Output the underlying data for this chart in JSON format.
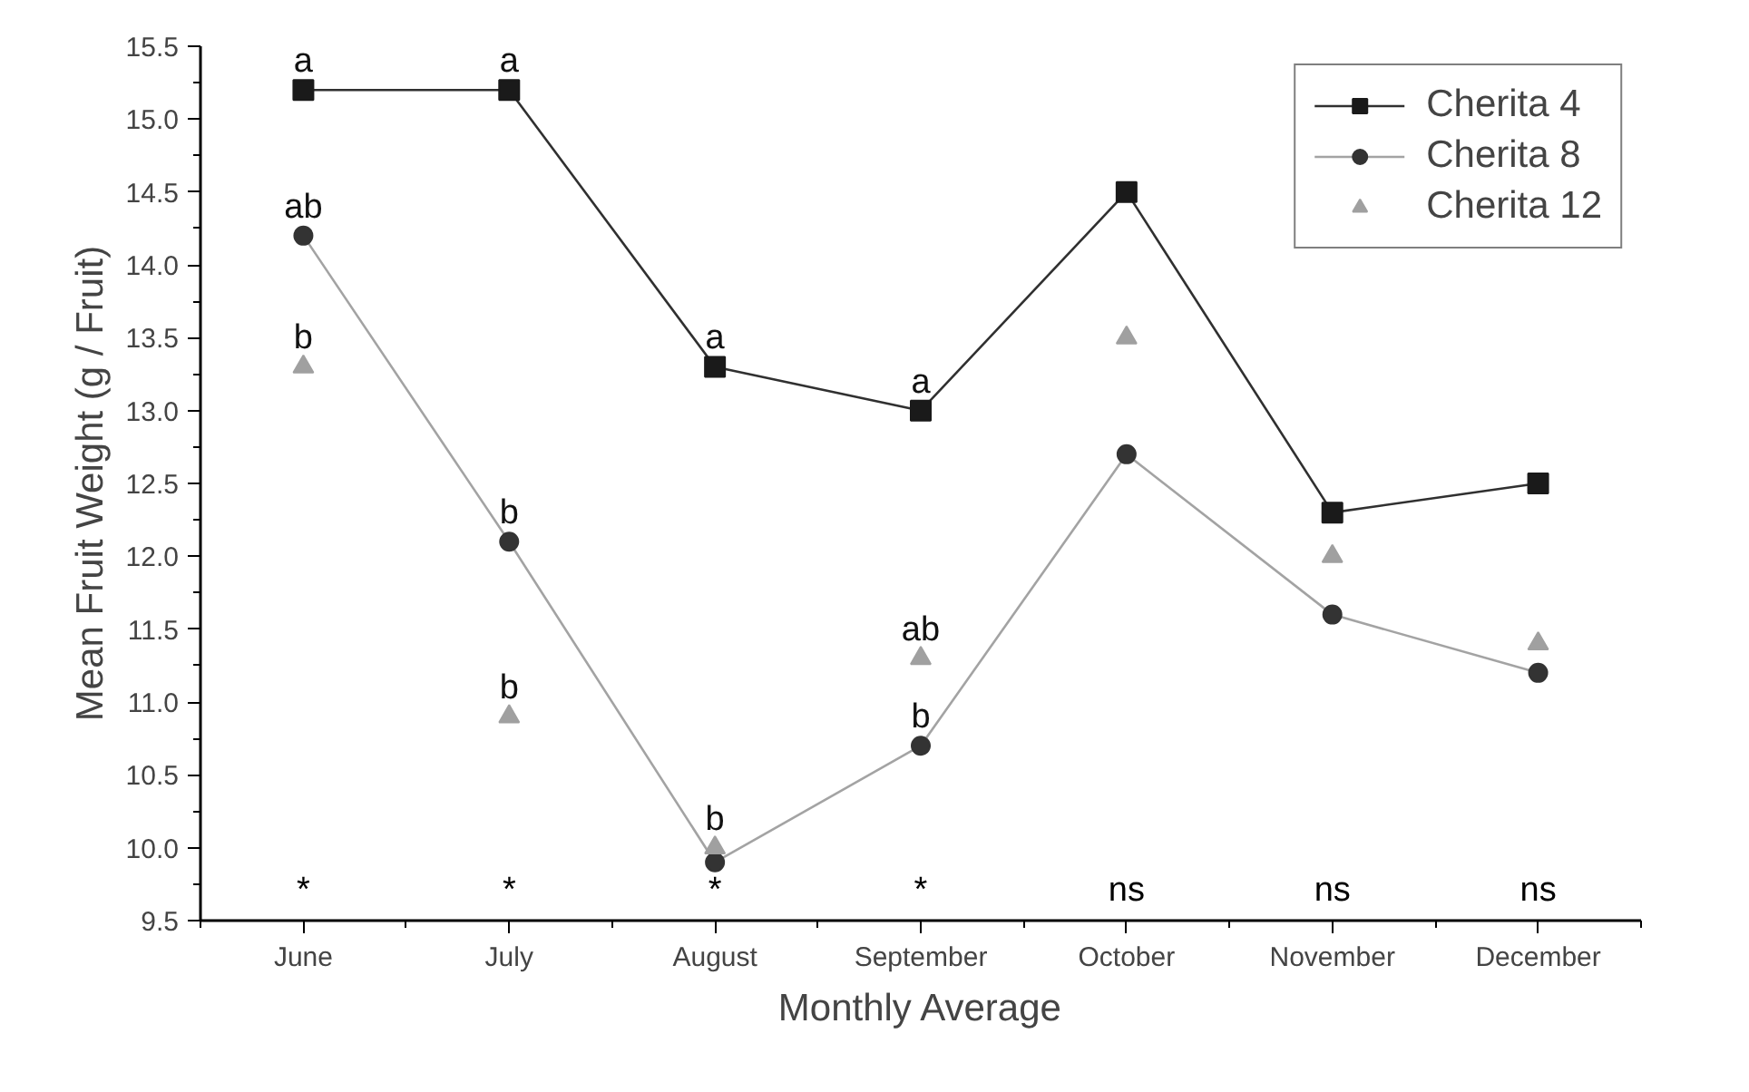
{
  "chart_data": {
    "type": "line",
    "xlabel": "Monthly Average",
    "ylabel": "Mean Fruit Weight (g / Fruit)",
    "categories": [
      "June",
      "July",
      "August",
      "September",
      "October",
      "November",
      "December"
    ],
    "series": [
      {
        "name": "Cherita 4",
        "color": "#1a1a1a",
        "marker": "square",
        "values": [
          15.2,
          15.2,
          13.3,
          13.0,
          14.5,
          12.3,
          12.5
        ],
        "value_labels": [
          "a",
          "a",
          "a",
          "a",
          null,
          null,
          null
        ]
      },
      {
        "name": "Cherita 8",
        "color": "#333333",
        "marker": "circle",
        "values": [
          14.2,
          12.1,
          9.9,
          10.7,
          12.7,
          11.6,
          11.2
        ],
        "value_labels": [
          "ab",
          "b",
          null,
          "b",
          null,
          null,
          null
        ]
      },
      {
        "name": "Cherita 12",
        "type": "scatter",
        "color": "#a0a0a0",
        "marker": "triangle",
        "values": [
          13.3,
          10.9,
          10.0,
          11.3,
          13.5,
          12.0,
          11.4
        ],
        "value_labels": [
          "b",
          "b",
          "b",
          "ab",
          null,
          null,
          null
        ]
      }
    ],
    "ylim": [
      9.5,
      15.5
    ],
    "yticks": [
      9.5,
      {
        "value": 10,
        "label": "10.0"
      },
      10.5,
      {
        "value": 11,
        "label": "11.0"
      },
      11.5,
      {
        "value": 12,
        "label": "12.0"
      },
      12.5,
      {
        "value": 13,
        "label": "13.0"
      },
      13.5,
      {
        "value": 14,
        "label": "14.0"
      },
      14.5,
      {
        "value": 15,
        "label": "15.0"
      },
      15.5
    ],
    "annotations": [
      "*",
      "*",
      "*",
      "*",
      "ns",
      "ns",
      "ns"
    ],
    "legend": "top right",
    "grid": false
  }
}
